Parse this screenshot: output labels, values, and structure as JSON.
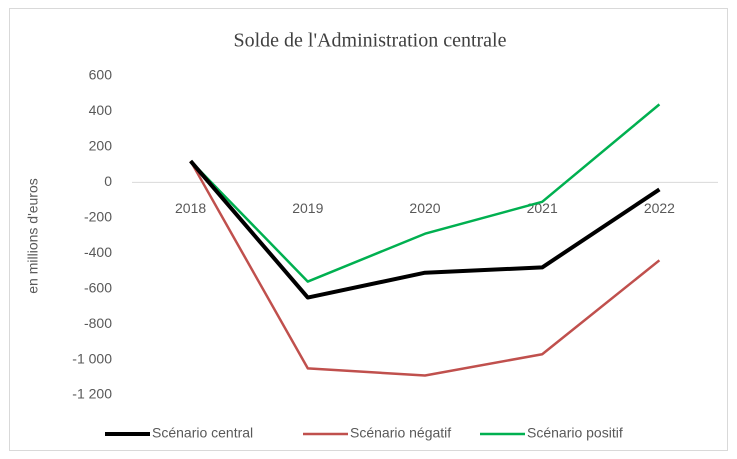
{
  "chart_data": {
    "type": "line",
    "title": "Solde de l'Administration centrale",
    "y_label": "en millions d'euros",
    "categories": [
      "2018",
      "2019",
      "2020",
      "2021",
      "2022"
    ],
    "series": [
      {
        "name": "Scénario central",
        "color": "#000000",
        "values": [
          120,
          -650,
          -510,
          -480,
          -40
        ]
      },
      {
        "name": "Scénario négatif",
        "color": "#c0504d",
        "values": [
          120,
          -1050,
          -1090,
          -970,
          -440
        ]
      },
      {
        "name": "Scénario positif",
        "color": "#00b050",
        "values": [
          120,
          -560,
          -290,
          -110,
          440
        ]
      }
    ],
    "ylim": [
      -1200,
      600
    ],
    "yticks": [
      {
        "value": -1200,
        "label": "-1 200"
      },
      {
        "value": -1000,
        "label": "-1 000"
      },
      -800,
      -600,
      -400,
      -200,
      0,
      200,
      400,
      600
    ],
    "grid": false,
    "legend": "bottom"
  }
}
